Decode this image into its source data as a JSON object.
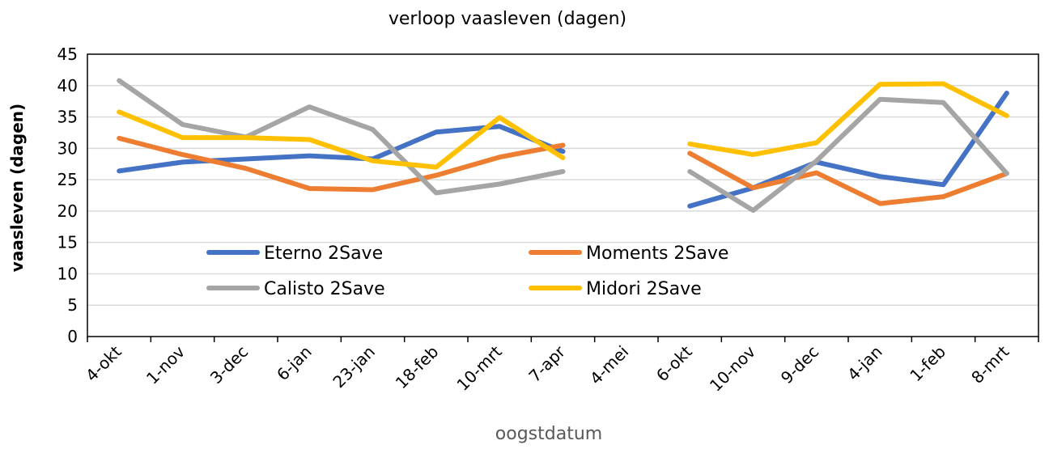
{
  "chart_data": {
    "type": "line",
    "title": "verloop vaasleven (dagen)",
    "xlabel": "oogstdatum",
    "ylabel": "vaasleven (dagen)",
    "ylim": [
      0,
      45
    ],
    "yticks": [
      0,
      5,
      10,
      15,
      20,
      25,
      30,
      35,
      40,
      45
    ],
    "grid": true,
    "legend_position": "inside-lower-center",
    "categories": [
      "4-okt",
      "1-nov",
      "3-dec",
      "6-jan",
      "23-jan",
      "18-feb",
      "10-mrt",
      "7-apr",
      "4-mei",
      "6-okt",
      "10-nov",
      "9-dec",
      "4-jan",
      "1-feb",
      "8-mrt"
    ],
    "series": [
      {
        "name": "Eterno 2Save",
        "color": "#4472C4",
        "values": [
          26.4,
          27.8,
          28.3,
          28.8,
          28.3,
          32.6,
          33.5,
          29.5,
          null,
          20.8,
          23.7,
          27.8,
          25.5,
          24.2,
          38.8
        ]
      },
      {
        "name": "Moments 2Save",
        "color": "#ED7D31",
        "values": [
          31.6,
          29.0,
          26.8,
          23.6,
          23.4,
          25.7,
          28.6,
          30.5,
          null,
          29.2,
          23.7,
          26.1,
          21.2,
          22.3,
          26.0
        ]
      },
      {
        "name": "Calisto 2Save",
        "color": "#A5A5A5",
        "values": [
          40.8,
          33.8,
          31.8,
          36.6,
          33.0,
          22.9,
          24.3,
          26.3,
          null,
          26.3,
          20.1,
          28.0,
          37.8,
          37.3,
          26.0
        ]
      },
      {
        "name": "Midori 2Save",
        "color": "#FFC000",
        "values": [
          35.8,
          31.7,
          31.7,
          31.4,
          28.0,
          27.0,
          34.9,
          28.5,
          null,
          30.7,
          29.0,
          30.9,
          40.2,
          40.3,
          35.2
        ]
      }
    ]
  }
}
